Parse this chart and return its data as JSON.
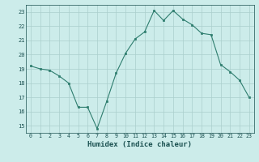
{
  "x": [
    0,
    1,
    2,
    3,
    4,
    5,
    6,
    7,
    8,
    9,
    10,
    11,
    12,
    13,
    14,
    15,
    16,
    17,
    18,
    19,
    20,
    21,
    22,
    23
  ],
  "y": [
    19.2,
    19.0,
    18.9,
    18.5,
    18.0,
    16.3,
    16.3,
    14.8,
    16.7,
    18.7,
    20.1,
    21.1,
    21.6,
    23.1,
    22.4,
    23.1,
    22.5,
    22.1,
    21.5,
    21.4,
    19.3,
    18.8,
    18.2,
    17.0
  ],
  "xlabel": "Humidex (Indice chaleur)",
  "xlim": [
    -0.5,
    23.5
  ],
  "ylim": [
    14.5,
    23.5
  ],
  "yticks": [
    15,
    16,
    17,
    18,
    19,
    20,
    21,
    22,
    23
  ],
  "xticks": [
    0,
    1,
    2,
    3,
    4,
    5,
    6,
    7,
    8,
    9,
    10,
    11,
    12,
    13,
    14,
    15,
    16,
    17,
    18,
    19,
    20,
    21,
    22,
    23
  ],
  "line_color": "#2e7d6e",
  "marker_color": "#2e7d6e",
  "bg_color": "#ccecea",
  "grid_color": "#aacfcc",
  "tick_label_color": "#1a5050",
  "xlabel_color": "#1a5050"
}
